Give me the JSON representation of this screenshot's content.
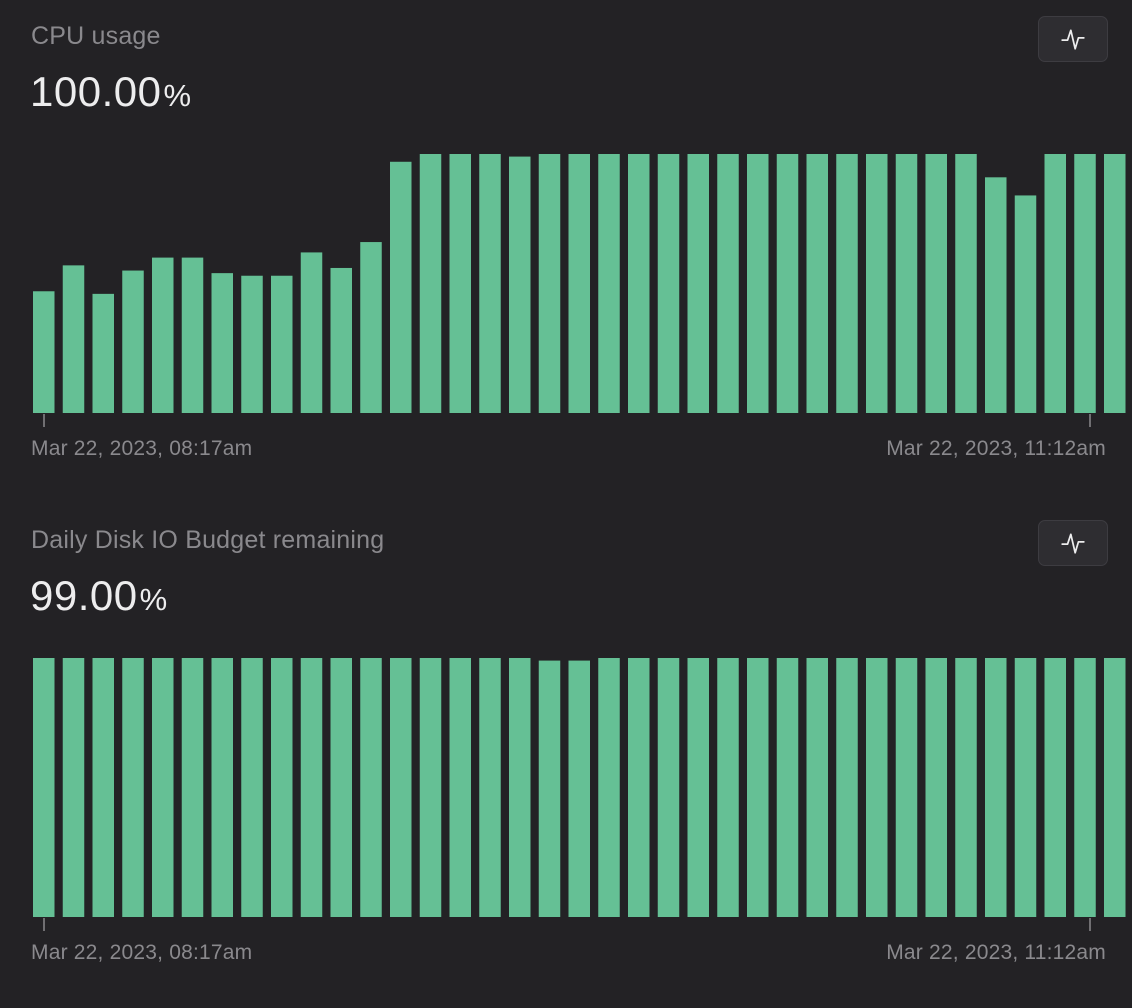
{
  "colors": {
    "background": "#232225",
    "bar": "#65c095",
    "axis_text": "#8a898d",
    "value_text": "#ededee"
  },
  "panels": [
    {
      "title": "CPU usage",
      "value": "100.00",
      "unit": "%",
      "toggle_icon": "activity-line-icon",
      "axis_start_label": "Mar 22, 2023, 08:17am",
      "axis_end_label": "Mar 22, 2023, 11:12am"
    },
    {
      "title": "Daily Disk IO Budget remaining",
      "value": "99.00",
      "unit": "%",
      "toggle_icon": "activity-line-icon",
      "axis_start_label": "Mar 22, 2023, 08:17am",
      "axis_end_label": "Mar 22, 2023, 11:12am"
    }
  ],
  "chart_data": [
    {
      "type": "bar",
      "title": "CPU usage",
      "x_range": [
        "Mar 22, 2023, 08:17am",
        "Mar 22, 2023, 11:12am"
      ],
      "ylim": [
        0,
        100
      ],
      "values": [
        47,
        57,
        46,
        55,
        60,
        60,
        54,
        53,
        53,
        62,
        56,
        66,
        97,
        100,
        100,
        100,
        99,
        100,
        100,
        100,
        100,
        100,
        100,
        100,
        100,
        100,
        100,
        100,
        100,
        100,
        100,
        100,
        91,
        84,
        100,
        100,
        100
      ]
    },
    {
      "type": "bar",
      "title": "Daily Disk IO Budget remaining",
      "x_range": [
        "Mar 22, 2023, 08:17am",
        "Mar 22, 2023, 11:12am"
      ],
      "ylim": [
        0,
        100
      ],
      "values": [
        100,
        100,
        100,
        100,
        100,
        100,
        100,
        100,
        100,
        100,
        100,
        100,
        100,
        100,
        100,
        100,
        100,
        99,
        99,
        100,
        100,
        100,
        100,
        100,
        100,
        100,
        100,
        100,
        100,
        100,
        100,
        100,
        100,
        100,
        100,
        100,
        100
      ]
    }
  ]
}
